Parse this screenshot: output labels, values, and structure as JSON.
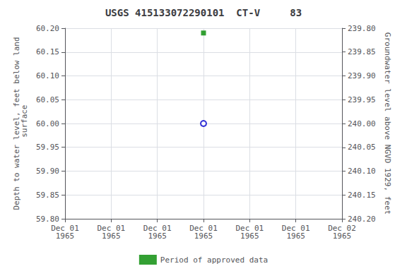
{
  "chart_data": {
    "type": "scatter",
    "title": "USGS 415133072290101  CT-V     83",
    "ylabel": "Depth to water level, feet below land\n surface",
    "y2label": "Groundwater level above NGVD 1929, feet",
    "categories": [
      "Dec 01\n1965",
      "Dec 01\n1965",
      "Dec 01\n1965",
      "Dec 01\n1965",
      "Dec 01\n1965",
      "Dec 01\n1965",
      "Dec 02\n1965"
    ],
    "series": [
      {
        "color": "#0000cc",
        "marker": "circle",
        "values": [
          null,
          null,
          null,
          60.0,
          null,
          null,
          null
        ]
      },
      {
        "name": "Period of approved data",
        "color": "#008800",
        "marker": "square",
        "values": [
          null,
          null,
          null,
          60.19,
          null,
          null,
          null
        ]
      }
    ],
    "ylim": [
      59.8,
      60.2
    ],
    "yticks": [
      {
        "value": 59.8,
        "label": "59.80"
      },
      {
        "value": 59.85,
        "label": "59.85"
      },
      {
        "value": 59.9,
        "label": "59.90"
      },
      {
        "value": 59.95,
        "label": "59.95"
      },
      {
        "value": 60.0,
        "label": "60.00"
      },
      {
        "value": 60.05,
        "label": "60.05"
      },
      {
        "value": 60.1,
        "label": "60.10"
      },
      {
        "value": 60.15,
        "label": "60.15"
      },
      {
        "value": 60.2,
        "label": "60.20"
      }
    ],
    "y2lim": [
      240.2,
      239.8
    ],
    "y2ticks": [
      {
        "value": 240.2,
        "label": "240.20"
      },
      {
        "value": 240.15,
        "label": "240.15"
      },
      {
        "value": 240.1,
        "label": "240.10"
      },
      {
        "value": 240.05,
        "label": "240.05"
      },
      {
        "value": 240.0,
        "label": "240.00"
      },
      {
        "value": 239.95,
        "label": "239.95"
      },
      {
        "value": 239.9,
        "label": "239.90"
      },
      {
        "value": 239.85,
        "label": "239.85"
      },
      {
        "value": 239.8,
        "label": "239.80"
      }
    ],
    "grid": true,
    "legend": "bottom"
  }
}
